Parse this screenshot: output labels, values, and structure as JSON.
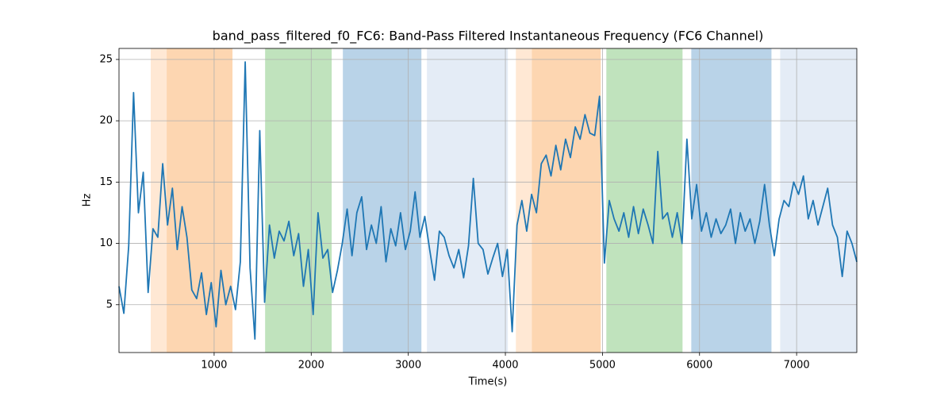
{
  "chart_data": {
    "type": "line",
    "title": "band_pass_filtered_f0_FC6: Band-Pass Filtered Instantaneous Frequency (FC6 Channel)",
    "x_label": "Time(s)",
    "y_label": "Hz",
    "xlim": [
      20,
      7620
    ],
    "ylim": [
      1.1,
      25.9
    ],
    "xticks": [
      1000,
      2000,
      3000,
      4000,
      5000,
      6000,
      7000
    ],
    "yticks": [
      5,
      10,
      15,
      20,
      25
    ],
    "grid": true,
    "spans": [
      {
        "x0": 347,
        "x1": 511,
        "color": "#ffe8d4"
      },
      {
        "x0": 511,
        "x1": 1189,
        "color": "#fdd6b1"
      },
      {
        "x0": 1525,
        "x1": 2211,
        "color": "#c0e3bd"
      },
      {
        "x0": 2326,
        "x1": 3135,
        "color": "#b9d3e8"
      },
      {
        "x0": 3192,
        "x1": 4026,
        "color": "#e4ecf6"
      },
      {
        "x0": 4108,
        "x1": 4272,
        "color": "#ffe8d4"
      },
      {
        "x0": 4272,
        "x1": 4983,
        "color": "#fdd6b1"
      },
      {
        "x0": 5040,
        "x1": 5825,
        "color": "#c0e3bd"
      },
      {
        "x0": 5915,
        "x1": 6741,
        "color": "#b9d3e8"
      },
      {
        "x0": 6831,
        "x1": 7620,
        "color": "#e4ecf6"
      }
    ],
    "series": [
      {
        "color": "#1f77b4",
        "x": [
          20,
          70,
          120,
          170,
          220,
          270,
          320,
          370,
          420,
          470,
          520,
          570,
          620,
          670,
          720,
          770,
          820,
          870,
          920,
          970,
          1020,
          1070,
          1120,
          1170,
          1220,
          1270,
          1320,
          1370,
          1420,
          1470,
          1520,
          1570,
          1620,
          1670,
          1720,
          1770,
          1820,
          1870,
          1920,
          1970,
          2020,
          2070,
          2120,
          2170,
          2220,
          2270,
          2320,
          2370,
          2420,
          2470,
          2520,
          2570,
          2620,
          2670,
          2720,
          2770,
          2820,
          2870,
          2920,
          2970,
          3020,
          3070,
          3120,
          3170,
          3220,
          3270,
          3320,
          3370,
          3420,
          3470,
          3520,
          3570,
          3620,
          3670,
          3720,
          3770,
          3820,
          3870,
          3920,
          3970,
          4020,
          4070,
          4120,
          4170,
          4220,
          4270,
          4320,
          4370,
          4420,
          4470,
          4520,
          4570,
          4620,
          4670,
          4720,
          4770,
          4820,
          4870,
          4920,
          4970,
          5020,
          5070,
          5120,
          5170,
          5220,
          5270,
          5320,
          5370,
          5420,
          5470,
          5520,
          5570,
          5620,
          5670,
          5720,
          5770,
          5820,
          5870,
          5920,
          5970,
          6020,
          6070,
          6120,
          6170,
          6220,
          6270,
          6320,
          6370,
          6420,
          6470,
          6520,
          6570,
          6620,
          6670,
          6720,
          6770,
          6820,
          6870,
          6920,
          6970,
          7020,
          7070,
          7120,
          7170,
          7220,
          7270,
          7320,
          7370,
          7420,
          7470,
          7520,
          7570,
          7620
        ],
        "values": [
          6.5,
          4.3,
          9.8,
          22.3,
          12.5,
          15.8,
          6.0,
          11.2,
          10.5,
          16.5,
          11.5,
          14.5,
          9.5,
          13.0,
          10.5,
          6.2,
          5.5,
          7.6,
          4.2,
          6.8,
          3.2,
          7.8,
          5.0,
          6.5,
          4.6,
          8.5,
          24.8,
          8.0,
          2.2,
          19.2,
          5.2,
          11.5,
          8.8,
          11.0,
          10.2,
          11.8,
          9.0,
          10.8,
          6.5,
          9.5,
          4.2,
          12.5,
          8.8,
          9.5,
          6.0,
          7.8,
          10.0,
          12.8,
          9.0,
          12.5,
          13.8,
          9.5,
          11.5,
          10.0,
          13.0,
          8.5,
          11.2,
          9.8,
          12.5,
          9.5,
          11.0,
          14.2,
          10.5,
          12.2,
          9.5,
          7.0,
          11.0,
          10.5,
          9.0,
          8.0,
          9.5,
          7.2,
          9.8,
          15.3,
          10.0,
          9.5,
          7.5,
          8.8,
          10.0,
          7.3,
          9.5,
          2.8,
          11.5,
          13.5,
          11.0,
          14.0,
          12.5,
          16.5,
          17.2,
          15.5,
          18.0,
          16.0,
          18.5,
          17.0,
          19.5,
          18.5,
          20.5,
          19.0,
          18.8,
          22.0,
          8.4,
          13.5,
          12.0,
          11.0,
          12.5,
          10.5,
          13.0,
          10.8,
          12.8,
          11.5,
          10.0,
          17.5,
          12.0,
          12.5,
          10.5,
          12.5,
          10.0,
          18.5,
          12.0,
          14.8,
          11.0,
          12.5,
          10.5,
          12.0,
          10.8,
          11.5,
          12.8,
          10.0,
          12.5,
          11.0,
          12.0,
          10.0,
          11.8,
          14.8,
          11.5,
          9.0,
          12.0,
          13.5,
          13.0,
          15.0,
          14.0,
          15.5,
          12.0,
          13.5,
          11.5,
          13.0,
          14.5,
          11.5,
          10.5,
          7.3,
          11.0,
          10.0,
          8.5
        ]
      }
    ]
  }
}
